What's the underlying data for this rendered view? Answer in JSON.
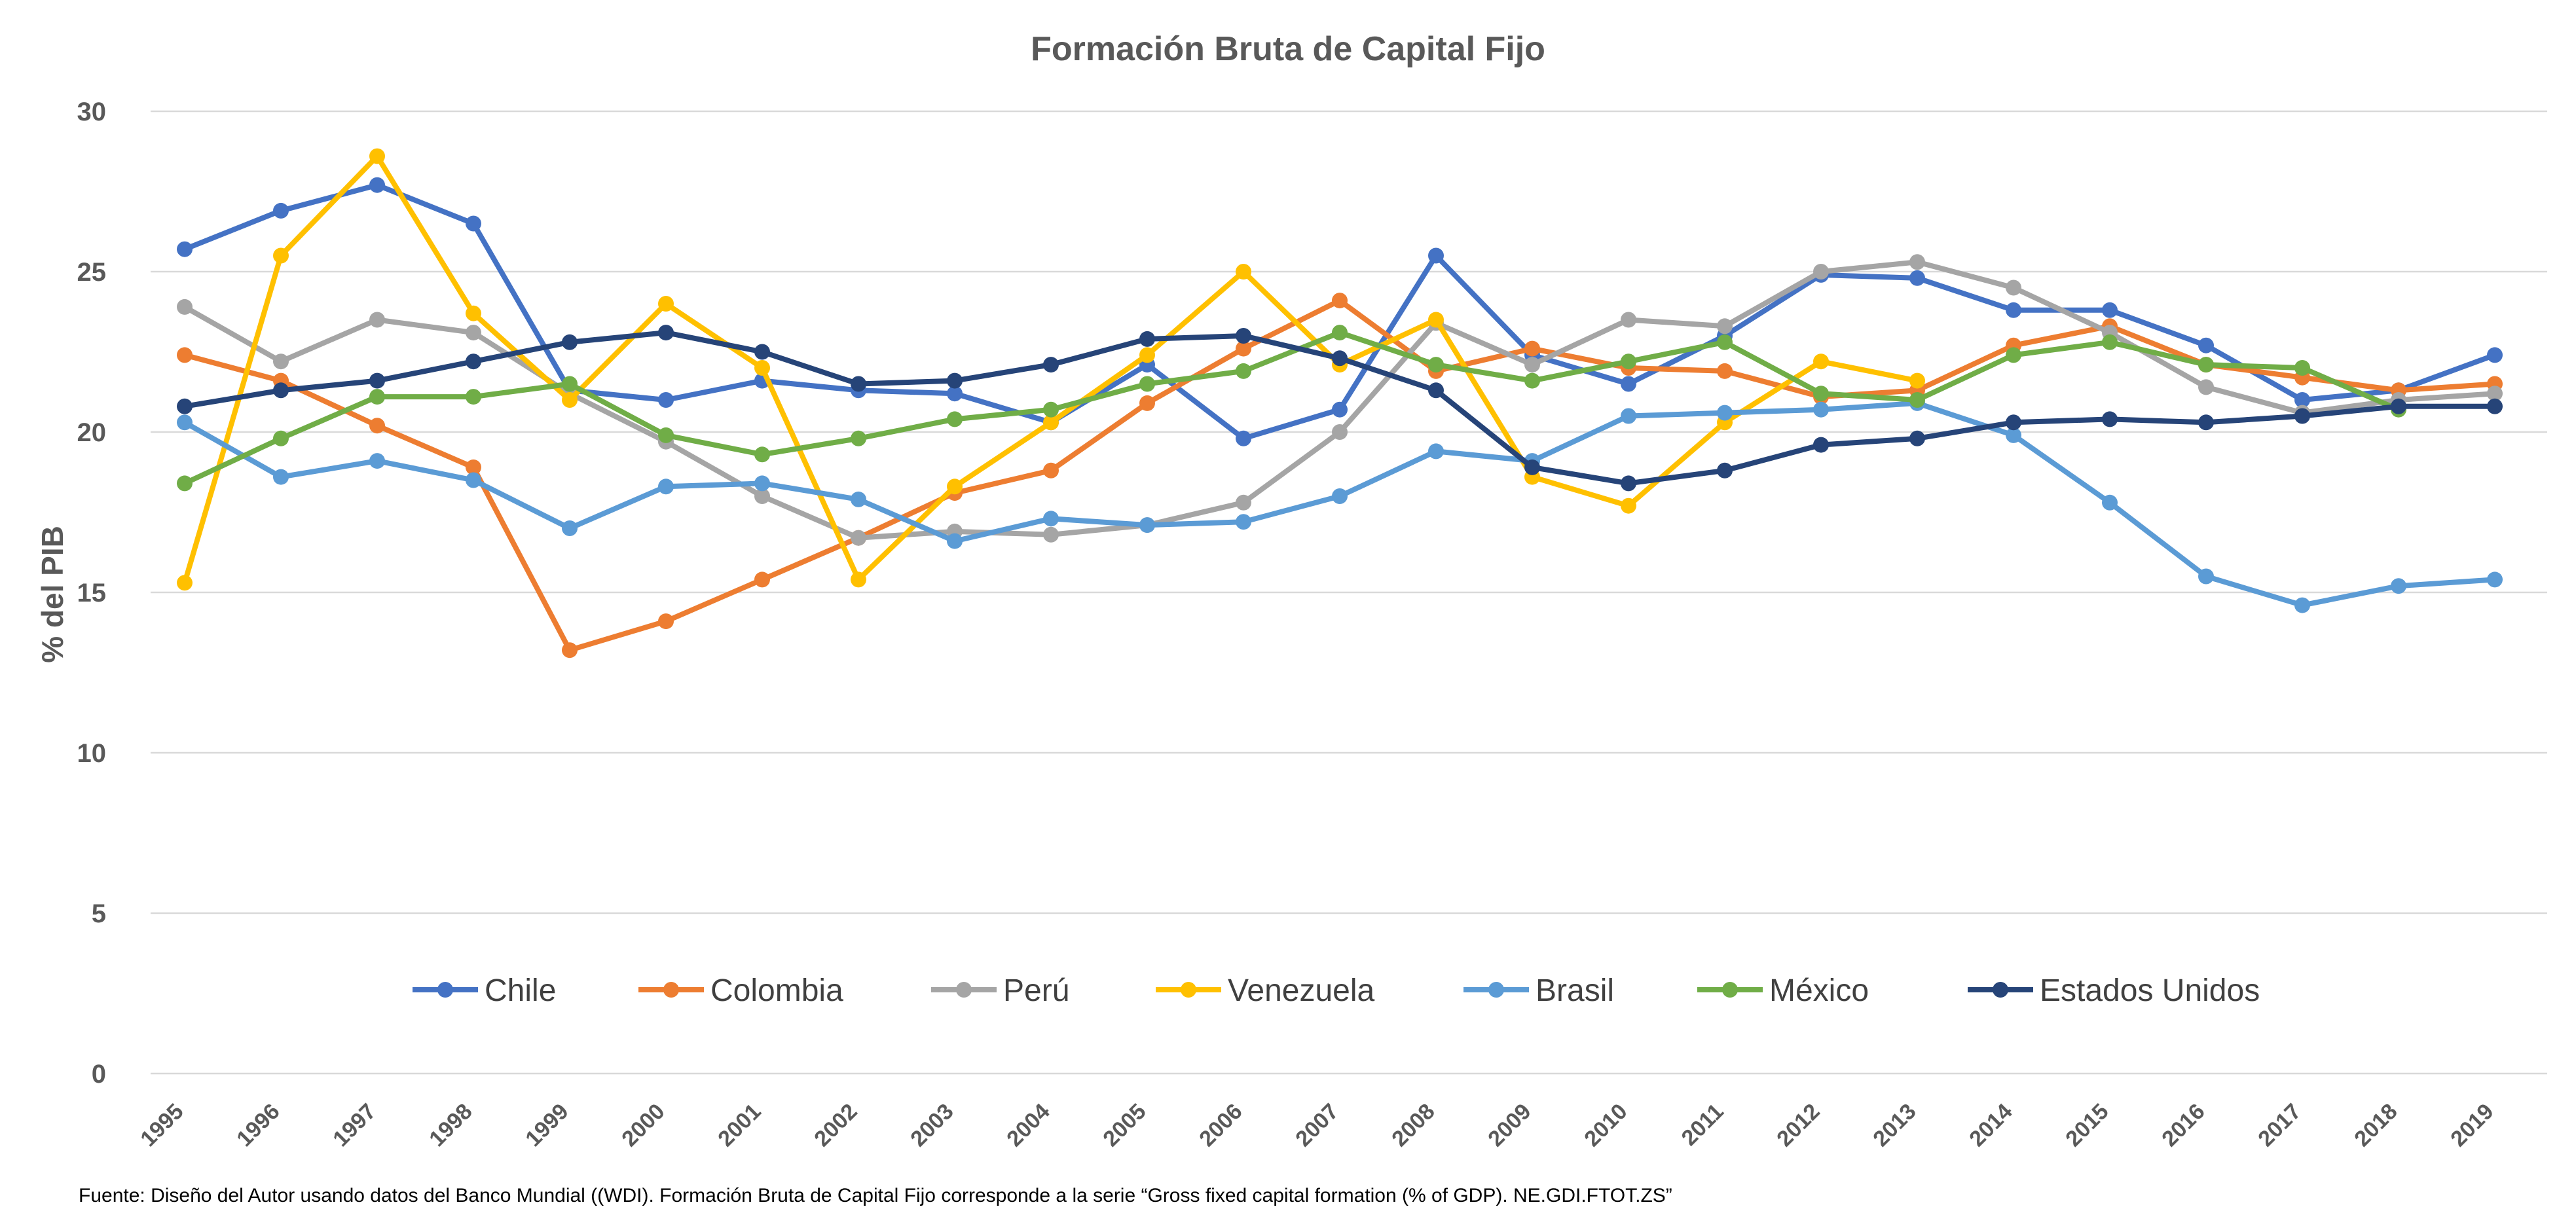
{
  "chart_data": {
    "type": "line",
    "title": "Formación Bruta de Capital Fijo",
    "xlabel": "",
    "ylabel": "% del PIB",
    "ylim": [
      0,
      30
    ],
    "yticks": [
      0,
      5,
      10,
      15,
      20,
      25,
      30
    ],
    "grid": true,
    "legend_position": "inside-bottom",
    "x": [
      "1995",
      "1996",
      "1997",
      "1998",
      "1999",
      "2000",
      "2001",
      "2002",
      "2003",
      "2004",
      "2005",
      "2006",
      "2007",
      "2008",
      "2009",
      "2010",
      "2011",
      "2012",
      "2013",
      "2014",
      "2015",
      "2016",
      "2017",
      "2018",
      "2019"
    ],
    "series": [
      {
        "name": "Chile",
        "color": "#4472c4",
        "values": [
          25.7,
          26.9,
          27.7,
          26.5,
          21.3,
          21.0,
          21.6,
          21.3,
          21.2,
          20.3,
          22.1,
          19.8,
          20.7,
          25.5,
          22.4,
          21.5,
          23.0,
          24.9,
          24.8,
          23.8,
          23.8,
          22.7,
          21.0,
          21.3,
          22.4
        ]
      },
      {
        "name": "Colombia",
        "color": "#ed7d31",
        "values": [
          22.4,
          21.6,
          20.2,
          18.9,
          13.2,
          14.1,
          15.4,
          16.7,
          18.1,
          18.8,
          20.9,
          22.6,
          24.1,
          21.9,
          22.6,
          22.0,
          21.9,
          21.1,
          21.3,
          22.7,
          23.3,
          22.1,
          21.7,
          21.3,
          21.5
        ]
      },
      {
        "name": "Perú",
        "color": "#a5a5a5",
        "values": [
          23.9,
          22.2,
          23.5,
          23.1,
          21.2,
          19.7,
          18.0,
          16.7,
          16.9,
          16.8,
          17.1,
          17.8,
          20.0,
          23.4,
          22.1,
          23.5,
          23.3,
          25.0,
          25.3,
          24.5,
          23.1,
          21.4,
          20.6,
          21.0,
          21.2
        ]
      },
      {
        "name": "Venezuela",
        "color": "#ffc000",
        "values": [
          15.3,
          25.5,
          28.6,
          23.7,
          21.0,
          24.0,
          22.0,
          15.4,
          18.3,
          20.3,
          22.4,
          25.0,
          22.1,
          23.5,
          18.6,
          17.7,
          20.3,
          22.2,
          21.6,
          null,
          null,
          null,
          null,
          null,
          null
        ]
      },
      {
        "name": "Brasil",
        "color": "#5b9bd5",
        "values": [
          20.3,
          18.6,
          19.1,
          18.5,
          17.0,
          18.3,
          18.4,
          17.9,
          16.6,
          17.3,
          17.1,
          17.2,
          18.0,
          19.4,
          19.1,
          20.5,
          20.6,
          20.7,
          20.9,
          19.9,
          17.8,
          15.5,
          14.6,
          15.2,
          15.4
        ]
      },
      {
        "name": "México",
        "color": "#70ad47",
        "values": [
          18.4,
          19.8,
          21.1,
          21.1,
          21.5,
          19.9,
          19.3,
          19.8,
          20.4,
          20.7,
          21.5,
          21.9,
          23.1,
          22.1,
          21.6,
          22.2,
          22.8,
          21.2,
          21.0,
          22.4,
          22.8,
          22.1,
          22.0,
          20.7,
          null
        ]
      },
      {
        "name": "Estados Unidos",
        "color": "#264478",
        "values": [
          20.8,
          21.3,
          21.6,
          22.2,
          22.8,
          23.1,
          22.5,
          21.5,
          21.6,
          22.1,
          22.9,
          23.0,
          22.3,
          21.3,
          18.9,
          18.4,
          18.8,
          19.6,
          19.8,
          20.3,
          20.4,
          20.3,
          20.5,
          20.8,
          20.8
        ]
      }
    ]
  },
  "source_note": "Fuente: Diseño del Autor usando datos del Banco Mundial ((WDI). Formación Bruta de Capital Fijo corresponde a la serie “Gross fixed capital formation (% of GDP). NE.GDI.FTOT.ZS”"
}
